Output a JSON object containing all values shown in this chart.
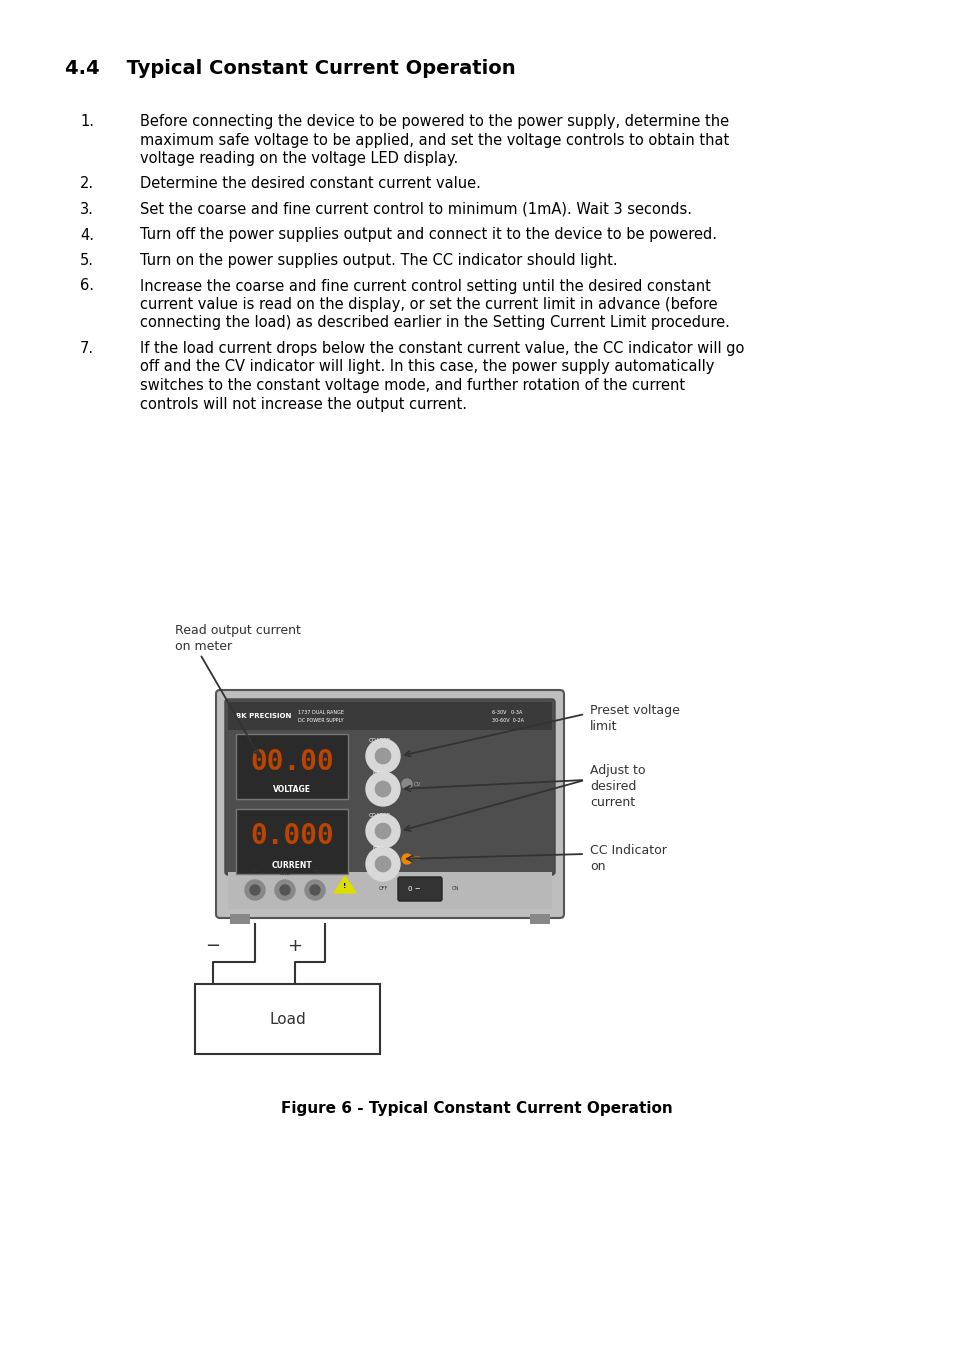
{
  "title": "4.4    Typical Constant Current Operation",
  "title_fontsize": 14,
  "body_fontsize": 10.5,
  "background_color": "#ffffff",
  "text_color": "#000000",
  "items": [
    {
      "num": "1.",
      "lines": [
        "Before connecting the device to be powered to the power supply, determine the",
        "maximum safe voltage to be applied, and set the voltage controls to obtain that",
        "voltage reading on the voltage LED display."
      ]
    },
    {
      "num": "2.",
      "lines": [
        "Determine the desired constant current value."
      ]
    },
    {
      "num": "3.",
      "lines": [
        "Set the coarse and fine current control to minimum (1mA). Wait 3 seconds."
      ]
    },
    {
      "num": "4.",
      "lines": [
        "Turn off the power supplies output and connect it to the device to be powered."
      ]
    },
    {
      "num": "5.",
      "lines": [
        "Turn on the power supplies output. The CC indicator should light."
      ]
    },
    {
      "num": "6.",
      "lines": [
        "Increase the coarse and fine current control setting until the desired constant",
        "current value is read on the display, or set the current limit in advance (before",
        "connecting the load) as described earlier in the Setting Current Limit procedure."
      ]
    },
    {
      "num": "7.",
      "lines": [
        "If the load current drops below the constant current value, the CC indicator will go",
        "off and the CV indicator will light. In this case, the power supply automatically",
        "switches to the constant voltage mode, and further rotation of the current",
        "controls will not increase the output current."
      ]
    }
  ],
  "figure_caption": "Figure 6 - Typical Constant Current Operation",
  "figure_caption_fontsize": 11,
  "ann_read_output_line1": "Read output current",
  "ann_read_output_line2": "on meter",
  "ann_preset_voltage_line1": "Preset voltage",
  "ann_preset_voltage_line2": "limit",
  "ann_adjust_line1": "Adjust to",
  "ann_adjust_line2": "desired",
  "ann_adjust_line3": "current",
  "ann_cc_line1": "CC Indicator",
  "ann_cc_line2": "on"
}
